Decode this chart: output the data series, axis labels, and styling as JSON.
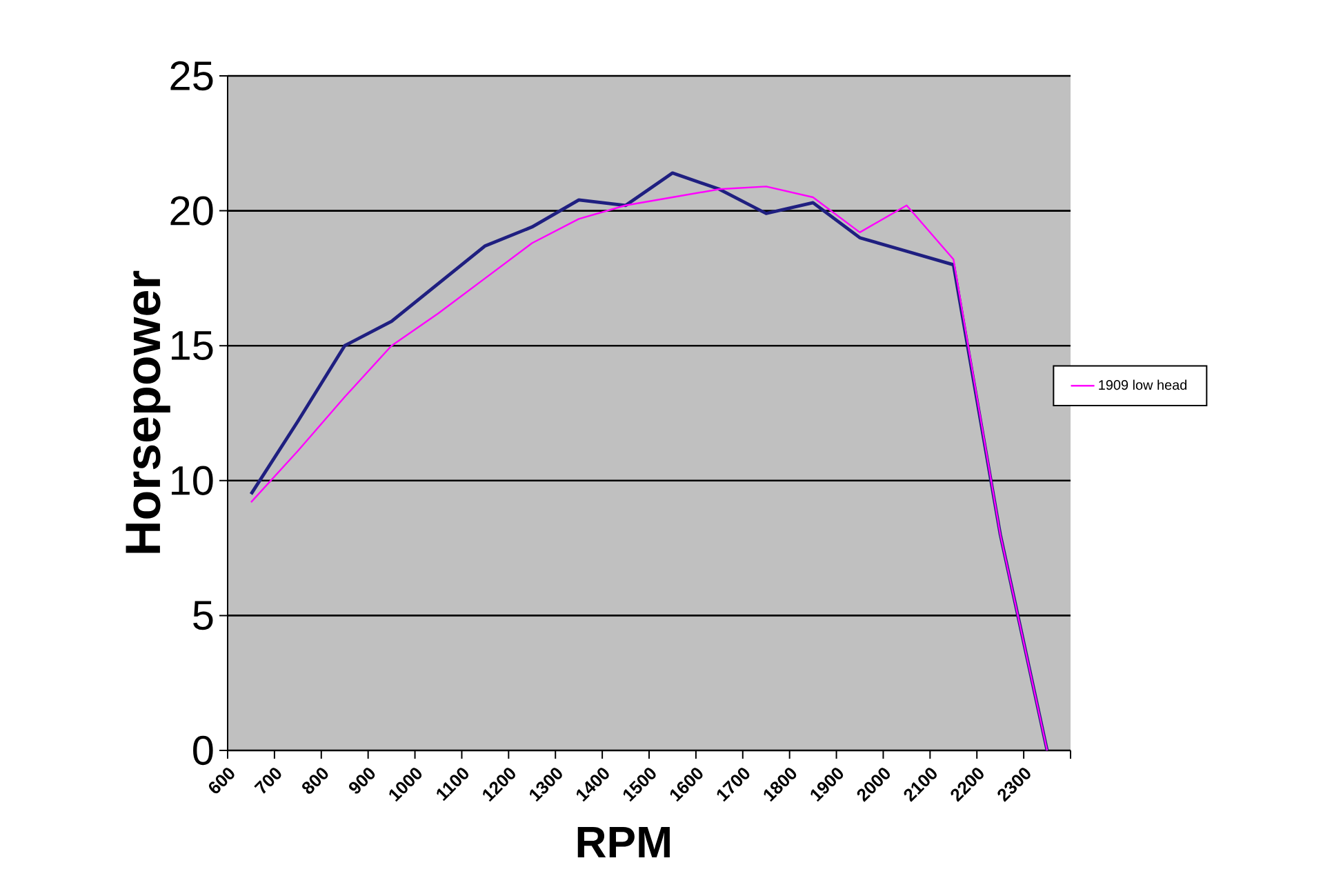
{
  "chart_data": {
    "type": "line",
    "xlabel": "RPM",
    "ylabel": "Horsepower",
    "x": [
      650,
      750,
      850,
      950,
      1050,
      1150,
      1250,
      1350,
      1450,
      1550,
      1650,
      1750,
      1850,
      1950,
      2050,
      2150,
      2250,
      2350
    ],
    "series": [
      {
        "color": "#1f1f80",
        "values": [
          9.5,
          12.2,
          15.0,
          15.9,
          17.3,
          18.7,
          19.4,
          20.4,
          20.2,
          21.4,
          20.8,
          19.9,
          20.3,
          19.0,
          18.5,
          18.0,
          8.0,
          0
        ]
      },
      {
        "name": "1909 low head",
        "color": "#ff00ff",
        "values": [
          9.2,
          11.1,
          13.1,
          15.0,
          16.2,
          17.5,
          18.8,
          19.7,
          20.2,
          20.5,
          20.8,
          20.9,
          20.5,
          19.2,
          20.2,
          18.2,
          8.0,
          0
        ]
      }
    ],
    "xlim": [
      600,
      2400
    ],
    "xticks": [
      600,
      700,
      800,
      900,
      1000,
      1100,
      1200,
      1300,
      1400,
      1500,
      1600,
      1700,
      1800,
      1900,
      2000,
      2100,
      2200,
      2300,
      {
        "value": 2400,
        "label": null
      }
    ],
    "ylim": [
      0,
      25
    ],
    "yticks": [
      0,
      5,
      10,
      15,
      20,
      25
    ],
    "grid": "y",
    "legend": "right",
    "marker": "none",
    "line_style": "solid"
  }
}
